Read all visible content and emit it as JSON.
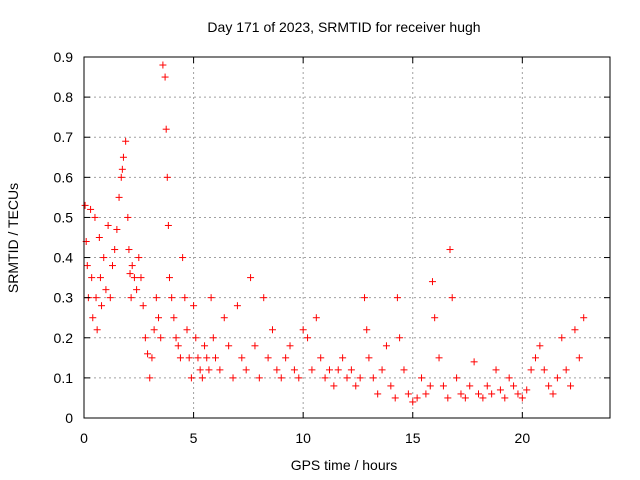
{
  "chart_data": {
    "type": "scatter",
    "title": "Day 171 of 2023, SRMTID for receiver hugh",
    "xlabel": "GPS time / hours",
    "ylabel": "SRMTID / TECUs",
    "xlim": [
      0,
      24
    ],
    "ylim": [
      0,
      0.9
    ],
    "xticks": [
      0,
      5,
      10,
      15,
      20
    ],
    "yticks": [
      0,
      0.1,
      0.2,
      0.3,
      0.4,
      0.5,
      0.6,
      0.7,
      0.8,
      0.9
    ],
    "grid": true,
    "marker": "+",
    "point_color": "#ff0000",
    "series": [
      {
        "name": "SRMTID",
        "x": [
          0.05,
          0.1,
          0.15,
          0.2,
          0.3,
          0.35,
          0.4,
          0.5,
          0.55,
          0.6,
          0.7,
          0.75,
          0.8,
          0.9,
          1.0,
          1.1,
          1.2,
          1.3,
          1.4,
          1.5,
          1.6,
          1.7,
          1.75,
          1.8,
          1.9,
          2.0,
          2.05,
          2.1,
          2.15,
          2.2,
          2.3,
          2.4,
          2.5,
          2.6,
          2.7,
          2.8,
          2.9,
          3.0,
          3.1,
          3.2,
          3.3,
          3.4,
          3.5,
          3.6,
          3.7,
          3.75,
          3.8,
          3.85,
          3.9,
          4.0,
          4.1,
          4.2,
          4.3,
          4.4,
          4.5,
          4.6,
          4.7,
          4.8,
          4.9,
          5.0,
          5.1,
          5.2,
          5.3,
          5.4,
          5.5,
          5.6,
          5.7,
          5.8,
          5.9,
          6.0,
          6.2,
          6.4,
          6.6,
          6.8,
          7.0,
          7.2,
          7.4,
          7.6,
          7.8,
          8.0,
          8.2,
          8.4,
          8.6,
          8.8,
          9.0,
          9.2,
          9.4,
          9.6,
          9.8,
          10.0,
          10.2,
          10.4,
          10.6,
          10.8,
          11.0,
          11.2,
          11.4,
          11.6,
          11.8,
          12.0,
          12.2,
          12.4,
          12.6,
          12.8,
          12.9,
          13.0,
          13.2,
          13.4,
          13.6,
          13.8,
          14.0,
          14.2,
          14.3,
          14.4,
          14.6,
          14.8,
          15.0,
          15.2,
          15.4,
          15.6,
          15.8,
          15.9,
          16.0,
          16.2,
          16.4,
          16.6,
          16.7,
          16.8,
          17.0,
          17.2,
          17.4,
          17.6,
          17.8,
          18.0,
          18.2,
          18.4,
          18.6,
          18.8,
          19.0,
          19.2,
          19.4,
          19.6,
          19.8,
          20.0,
          20.2,
          20.4,
          20.6,
          20.8,
          21.0,
          21.2,
          21.4,
          21.6,
          21.8,
          22.0,
          22.2,
          22.4,
          22.6,
          22.8
        ],
        "y": [
          0.53,
          0.44,
          0.38,
          0.3,
          0.52,
          0.35,
          0.25,
          0.5,
          0.3,
          0.22,
          0.45,
          0.35,
          0.28,
          0.4,
          0.32,
          0.48,
          0.3,
          0.38,
          0.42,
          0.47,
          0.55,
          0.6,
          0.62,
          0.65,
          0.69,
          0.5,
          0.42,
          0.36,
          0.3,
          0.38,
          0.35,
          0.32,
          0.4,
          0.35,
          0.28,
          0.2,
          0.16,
          0.1,
          0.15,
          0.22,
          0.3,
          0.25,
          0.2,
          0.88,
          0.85,
          0.72,
          0.6,
          0.48,
          0.35,
          0.3,
          0.25,
          0.2,
          0.18,
          0.15,
          0.4,
          0.3,
          0.22,
          0.15,
          0.1,
          0.28,
          0.2,
          0.15,
          0.12,
          0.1,
          0.18,
          0.15,
          0.12,
          0.3,
          0.2,
          0.15,
          0.12,
          0.25,
          0.18,
          0.1,
          0.28,
          0.15,
          0.12,
          0.35,
          0.18,
          0.1,
          0.3,
          0.15,
          0.22,
          0.12,
          0.1,
          0.15,
          0.18,
          0.12,
          0.1,
          0.22,
          0.2,
          0.12,
          0.25,
          0.15,
          0.1,
          0.12,
          0.08,
          0.12,
          0.15,
          0.1,
          0.12,
          0.08,
          0.1,
          0.3,
          0.22,
          0.15,
          0.1,
          0.06,
          0.12,
          0.18,
          0.08,
          0.05,
          0.3,
          0.2,
          0.12,
          0.06,
          0.04,
          0.05,
          0.1,
          0.06,
          0.08,
          0.34,
          0.25,
          0.15,
          0.08,
          0.05,
          0.42,
          0.3,
          0.1,
          0.06,
          0.05,
          0.08,
          0.14,
          0.06,
          0.05,
          0.08,
          0.06,
          0.12,
          0.07,
          0.05,
          0.1,
          0.08,
          0.06,
          0.05,
          0.07,
          0.12,
          0.15,
          0.18,
          0.12,
          0.08,
          0.06,
          0.1,
          0.2,
          0.12,
          0.08,
          0.22,
          0.15,
          0.25
        ]
      }
    ]
  }
}
